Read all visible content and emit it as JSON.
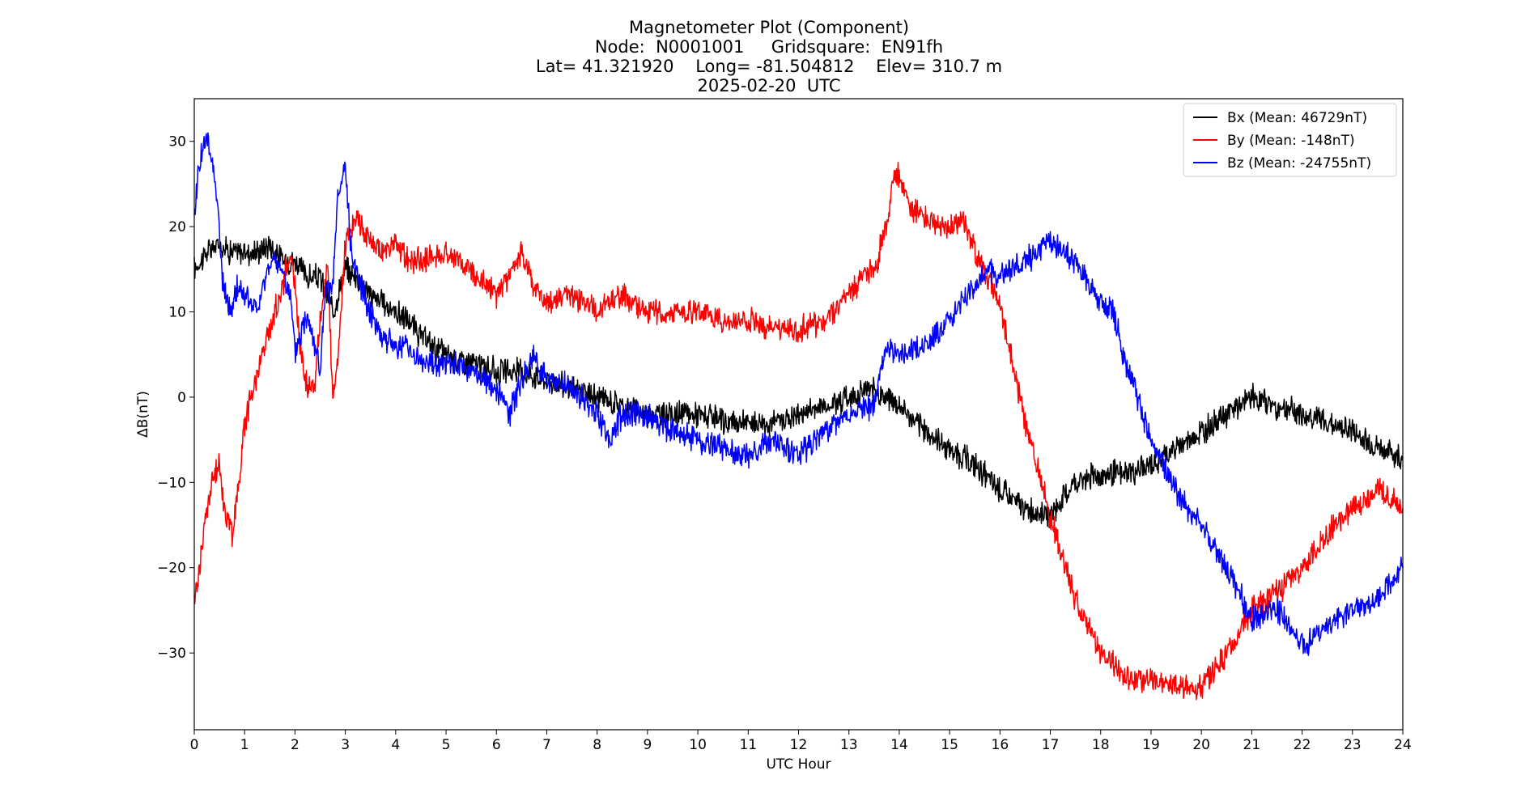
{
  "chart_data": {
    "type": "line",
    "title": "Magnetometer Plot (Component)",
    "subtitle_lines": [
      "Node:  N0001001     Gridsquare:  EN91fh",
      "Lat= 41.321920    Long= -81.504812    Elev= 310.7 m",
      "2025-02-20  UTC"
    ],
    "xlabel": "UTC Hour",
    "ylabel": "ΔB(nT)",
    "xlim": [
      0,
      24
    ],
    "ylim": [
      -39,
      35
    ],
    "xticks": [
      0,
      1,
      2,
      3,
      4,
      5,
      6,
      7,
      8,
      9,
      10,
      11,
      12,
      13,
      14,
      15,
      16,
      17,
      18,
      19,
      20,
      21,
      22,
      23,
      24
    ],
    "yticks": [
      -30,
      -20,
      -10,
      0,
      10,
      20,
      30
    ],
    "ytick_labels": [
      "−30",
      "−20",
      "−10",
      "0",
      "10",
      "20",
      "30"
    ],
    "grid": false,
    "legend_position": "top-right",
    "series": [
      {
        "name": "Bx (Mean: 46729nT)",
        "color": "#000000",
        "x": [
          0,
          0.25,
          0.5,
          0.75,
          1,
          1.25,
          1.5,
          1.75,
          2,
          2.25,
          2.5,
          2.75,
          3,
          3.25,
          3.5,
          3.75,
          4,
          4.25,
          4.5,
          4.75,
          5,
          5.5,
          6,
          6.5,
          7,
          7.5,
          8,
          8.5,
          9,
          9.5,
          10,
          10.5,
          11,
          11.5,
          12,
          12.5,
          13,
          13.5,
          14,
          14.5,
          15,
          15.5,
          16,
          16.5,
          17,
          17.5,
          18,
          18.5,
          19,
          19.5,
          20,
          20.5,
          21,
          21.5,
          22,
          22.5,
          23,
          23.5,
          24
        ],
        "y": [
          15,
          17,
          18,
          17,
          17,
          17,
          18,
          16,
          16,
          14,
          14,
          10,
          15,
          14,
          12,
          11,
          10,
          9,
          7,
          6,
          5,
          4,
          3,
          3,
          2,
          1,
          0,
          -1,
          -2,
          -2,
          -2,
          -3,
          -3,
          -3,
          -2,
          -1,
          0,
          1,
          -1,
          -4,
          -6,
          -8,
          -11,
          -13,
          -14,
          -10,
          -9,
          -9,
          -8,
          -6,
          -4,
          -2,
          0,
          -1,
          -2,
          -3,
          -4,
          -6,
          -7
        ]
      },
      {
        "name": "By (Mean: -148nT)",
        "color": "#ff0000",
        "x": [
          0,
          0.1,
          0.25,
          0.4,
          0.5,
          0.6,
          0.75,
          0.85,
          1,
          1.25,
          1.5,
          1.75,
          1.9,
          2,
          2.1,
          2.25,
          2.4,
          2.5,
          2.65,
          2.75,
          2.85,
          3,
          3.1,
          3.25,
          3.5,
          3.75,
          4,
          4.25,
          4.5,
          5,
          5.5,
          6,
          6.25,
          6.5,
          6.75,
          7,
          7.5,
          8,
          8.5,
          9,
          9.5,
          10,
          10.5,
          11,
          11.5,
          12,
          12.5,
          13,
          13.5,
          13.75,
          13.9,
          14,
          14.25,
          14.5,
          15,
          15.25,
          15.5,
          16,
          16.5,
          17,
          17.5,
          18,
          18.5,
          19,
          19.5,
          20,
          20.5,
          21,
          21.5,
          22,
          22.5,
          23,
          23.5,
          24
        ],
        "y": [
          -24,
          -20,
          -13,
          -9,
          -8,
          -13,
          -16,
          -12,
          -3,
          3,
          8,
          13,
          17,
          13,
          6,
          1,
          2,
          9,
          16,
          -1,
          4,
          18,
          20,
          21,
          18,
          17,
          18,
          16,
          16,
          17,
          15,
          12,
          14,
          17,
          13,
          11,
          12,
          10,
          12,
          10,
          10,
          10,
          9,
          9,
          8,
          8,
          9,
          12,
          15,
          20,
          26,
          26,
          22,
          21,
          20,
          21,
          17,
          11,
          -3,
          -14,
          -24,
          -30,
          -33,
          -33,
          -34,
          -34,
          -30,
          -25,
          -23,
          -20,
          -16,
          -13,
          -11,
          -13
        ]
      },
      {
        "name": "Bz (Mean: -24755nT)",
        "color": "#0000ff",
        "x": [
          0,
          0.05,
          0.15,
          0.25,
          0.35,
          0.45,
          0.55,
          0.65,
          0.75,
          0.85,
          1,
          1.25,
          1.5,
          1.75,
          1.9,
          2,
          2.25,
          2.4,
          2.5,
          2.6,
          2.75,
          2.85,
          3,
          3.1,
          3.25,
          3.5,
          3.75,
          4,
          4.25,
          4.5,
          5,
          5.5,
          6,
          6.25,
          6.5,
          6.75,
          7,
          7.5,
          8,
          8.25,
          8.5,
          9,
          9.5,
          10,
          10.5,
          11,
          11.5,
          12,
          12.5,
          13,
          13.5,
          13.75,
          14,
          14.5,
          15,
          15.5,
          15.75,
          16,
          16.5,
          17,
          17.5,
          18,
          18.25,
          18.5,
          19,
          19.5,
          20,
          20.5,
          21,
          21.5,
          22,
          22.5,
          23,
          23.5,
          24
        ],
        "y": [
          20,
          25,
          29,
          30,
          28,
          24,
          14,
          11,
          10,
          13,
          12,
          10,
          16,
          15,
          12,
          5,
          10,
          6,
          3,
          12,
          13,
          23,
          27,
          18,
          14,
          10,
          7,
          6,
          6,
          4,
          4,
          3,
          1,
          -2,
          2,
          5,
          2,
          1,
          -2,
          -5,
          -2,
          -2,
          -4,
          -5,
          -6,
          -7,
          -5,
          -7,
          -4,
          -2,
          -1,
          6,
          5,
          6,
          9,
          13,
          15,
          14,
          16,
          18,
          16,
          11,
          10,
          4,
          -5,
          -11,
          -15,
          -20,
          -26,
          -25,
          -29,
          -27,
          -25,
          -24,
          -20
        ]
      }
    ]
  }
}
